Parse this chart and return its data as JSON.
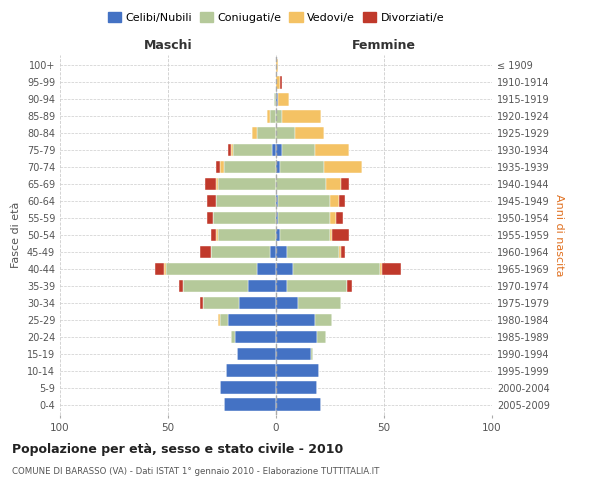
{
  "age_groups": [
    "0-4",
    "5-9",
    "10-14",
    "15-19",
    "20-24",
    "25-29",
    "30-34",
    "35-39",
    "40-44",
    "45-49",
    "50-54",
    "55-59",
    "60-64",
    "65-69",
    "70-74",
    "75-79",
    "80-84",
    "85-89",
    "90-94",
    "95-99",
    "100+"
  ],
  "birth_years": [
    "2005-2009",
    "2000-2004",
    "1995-1999",
    "1990-1994",
    "1985-1989",
    "1980-1984",
    "1975-1979",
    "1970-1974",
    "1965-1969",
    "1960-1964",
    "1955-1959",
    "1950-1954",
    "1945-1949",
    "1940-1944",
    "1935-1939",
    "1930-1934",
    "1925-1929",
    "1920-1924",
    "1915-1919",
    "1910-1914",
    "≤ 1909"
  ],
  "male_celibi": [
    24,
    26,
    23,
    18,
    19,
    22,
    17,
    13,
    9,
    3,
    0,
    0,
    0,
    0,
    0,
    2,
    0,
    0,
    0,
    0,
    0
  ],
  "male_coniugati": [
    0,
    0,
    0,
    0,
    2,
    4,
    17,
    30,
    42,
    27,
    27,
    29,
    28,
    27,
    24,
    18,
    9,
    3,
    1,
    0,
    0
  ],
  "male_vedovi": [
    0,
    0,
    0,
    0,
    0,
    1,
    0,
    0,
    1,
    0,
    1,
    0,
    0,
    1,
    2,
    1,
    2,
    1,
    0,
    0,
    0
  ],
  "male_divorziati": [
    0,
    0,
    0,
    0,
    0,
    0,
    1,
    2,
    4,
    5,
    2,
    3,
    4,
    5,
    2,
    1,
    0,
    0,
    0,
    0,
    0
  ],
  "female_celibi": [
    21,
    19,
    20,
    16,
    19,
    18,
    10,
    5,
    8,
    5,
    2,
    1,
    1,
    0,
    2,
    3,
    0,
    0,
    1,
    0,
    0
  ],
  "female_coniugati": [
    0,
    0,
    0,
    1,
    4,
    8,
    20,
    28,
    40,
    24,
    23,
    24,
    24,
    23,
    20,
    15,
    9,
    3,
    0,
    0,
    0
  ],
  "female_vedovi": [
    0,
    0,
    0,
    0,
    0,
    0,
    0,
    0,
    1,
    1,
    1,
    3,
    4,
    7,
    18,
    16,
    13,
    18,
    5,
    2,
    1
  ],
  "female_divorziati": [
    0,
    0,
    0,
    0,
    0,
    0,
    0,
    2,
    9,
    2,
    8,
    3,
    3,
    4,
    0,
    0,
    0,
    0,
    0,
    1,
    0
  ],
  "color_celibi": "#4472c4",
  "color_coniugati": "#b5c99a",
  "color_vedovi": "#f4c264",
  "color_divorziati": "#c0392b",
  "title": "Popolazione per età, sesso e stato civile - 2010",
  "subtitle": "COMUNE DI BARASSO (VA) - Dati ISTAT 1° gennaio 2010 - Elaborazione TUTTITALIA.IT",
  "xlabel_left": "Maschi",
  "xlabel_right": "Femmine",
  "ylabel_left": "Fasce di età",
  "ylabel_right": "Anni di nascita",
  "xlim": 100,
  "background_color": "#ffffff",
  "grid_color": "#cccccc"
}
